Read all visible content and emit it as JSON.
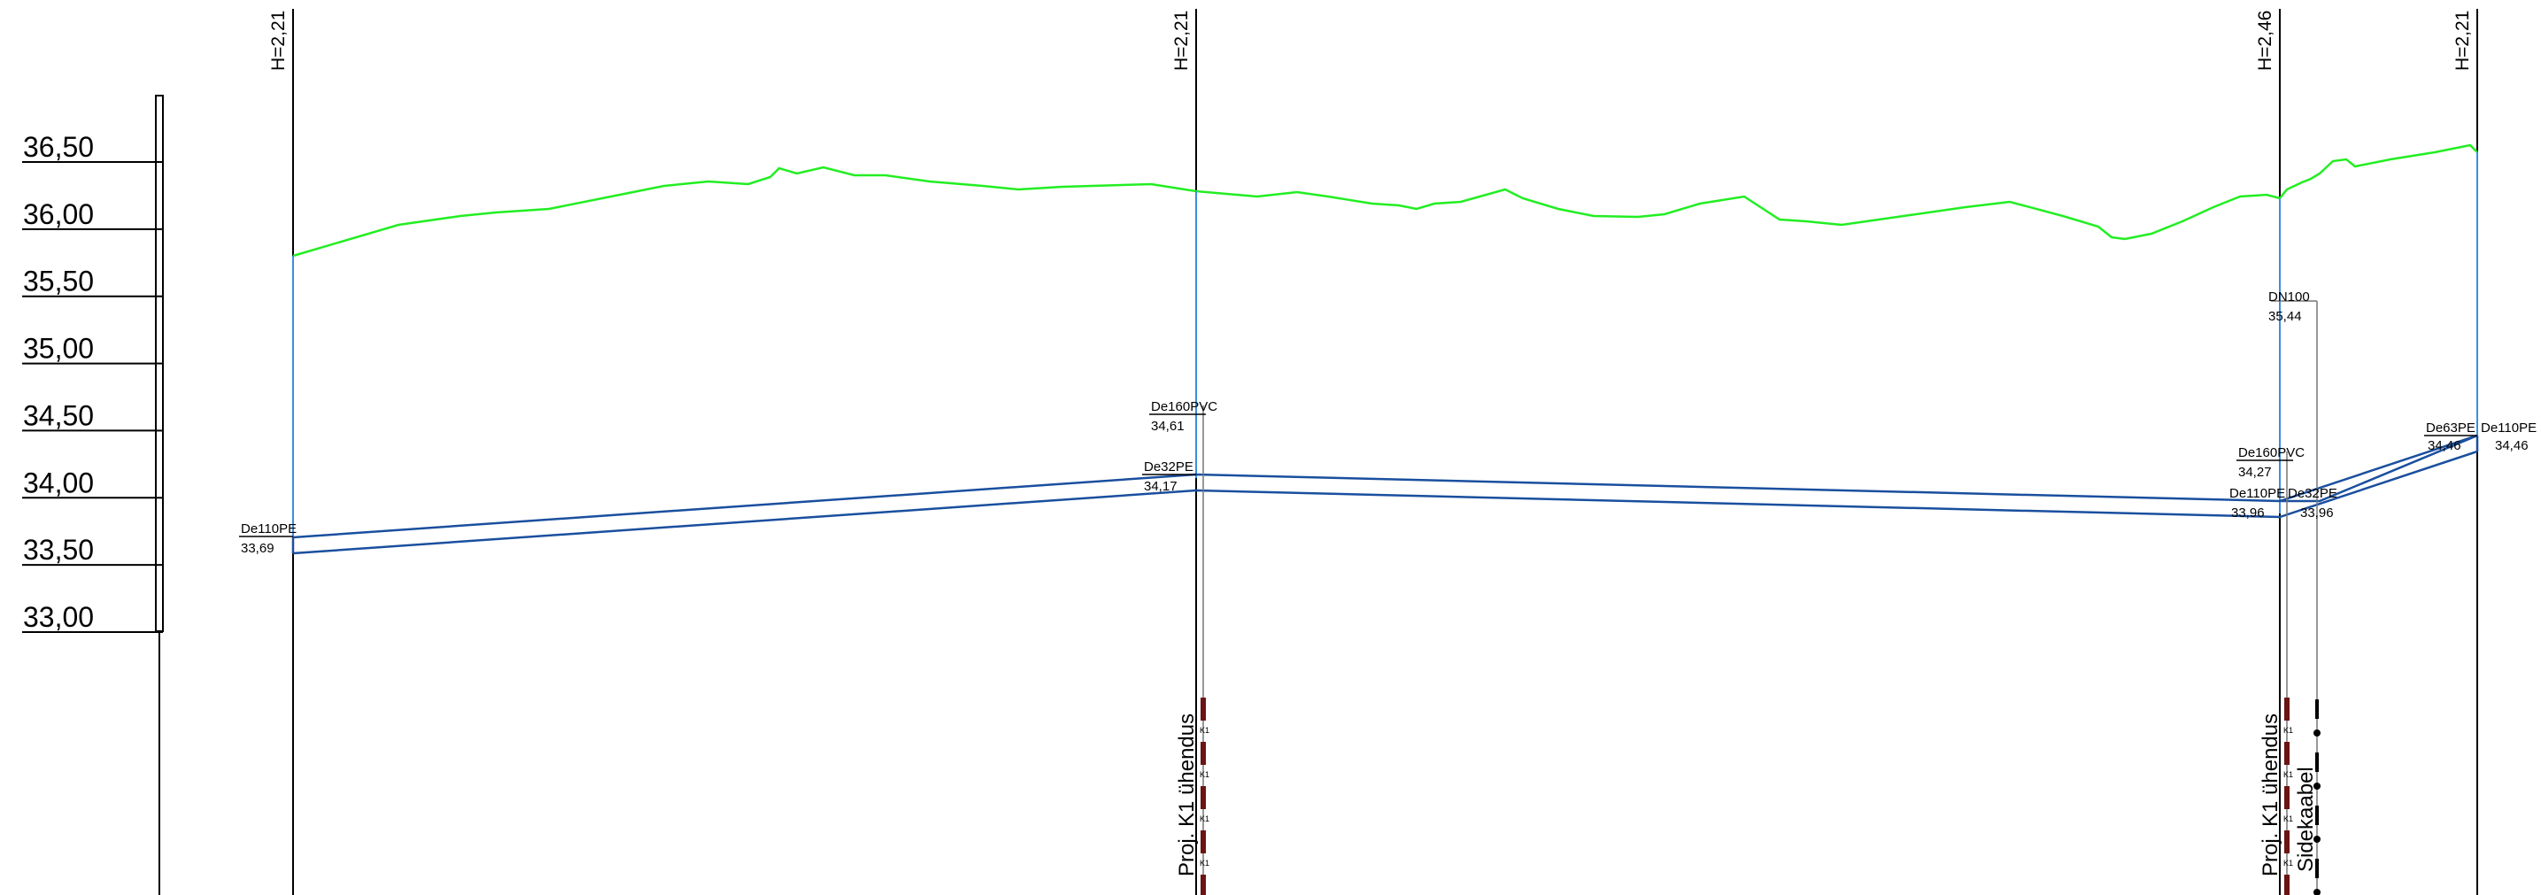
{
  "elevation_scale": {
    "labels": [
      "36,50",
      "36,00",
      "35,50",
      "35,00",
      "34,50",
      "34,00",
      "33,50",
      "33,00"
    ],
    "values": [
      36.5,
      36.0,
      35.5,
      35.0,
      34.5,
      34.0,
      33.5,
      33.0
    ]
  },
  "stations": [
    {
      "id": "s1",
      "depth_label": "H=2,21"
    },
    {
      "id": "s2",
      "depth_label": "H=2,21"
    },
    {
      "id": "s3",
      "depth_label": "H=2,46"
    },
    {
      "id": "s4",
      "depth_label": "H=2,21"
    }
  ],
  "pipe_labels": {
    "s1_pipe": "De110PE",
    "s1_elev": "33,69",
    "s2_pipe_a": "De160PVC",
    "s2_elev_a": "34,61",
    "s2_pipe_b": "De32PE",
    "s2_elev_b": "34,17",
    "s3_dn": "DN100",
    "s3_dn_elev": "35,44",
    "s3_pipe_a": "De160PVC",
    "s3_elev_a": "34,27",
    "s3_pipe_b": "De110PE",
    "s3_elev_b": "33,96",
    "s3_pipe_c": "De32PE",
    "s3_elev_c": "33,96",
    "s4_pipe_a": "De63PE",
    "s4_elev_a": "34,46",
    "s4_pipe_b": "De110PE",
    "s4_elev_b": "34,46"
  },
  "vertical_labels": {
    "k1_a": "Proj. K1 ühendus",
    "k1_b": "Proj. K1 ühendus",
    "sidekaabel": "Sidekaabel"
  },
  "cable_mark": "K1",
  "colors": {
    "ground": "#22ee22",
    "pipe": "#1a4f9e",
    "riser": "#3a8ee0",
    "cable": "#6b1414",
    "line": "#000000"
  }
}
